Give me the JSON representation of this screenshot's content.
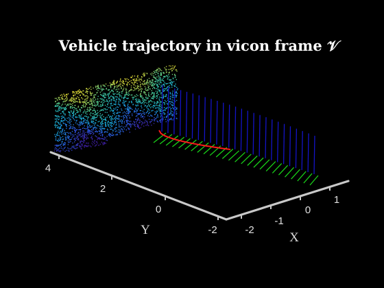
{
  "chart_data": {
    "type": "scatter",
    "title": "Vehicle trajectory in vicon frame 𝒱",
    "xlabel": "X",
    "ylabel": "Y",
    "zlabel": "",
    "x_ticks": [
      "-2",
      "-1",
      "0",
      "1"
    ],
    "y_ticks": [
      "-2",
      "0",
      "2",
      "4"
    ],
    "xlim": [
      -2.6,
      1.6
    ],
    "ylim": [
      -2.2,
      4.2
    ],
    "grid": false,
    "legend": "none",
    "colors": {
      "background": "#000000",
      "axes": "#c8c8c8",
      "trajectory": "#ff1a1a",
      "x_axis_markers": "#19d219",
      "z_axis_markers": "#1414c8",
      "pointcloud_colormap": [
        "#3b1d9a",
        "#2a58e0",
        "#17a8d8",
        "#3cc8a0",
        "#b8c840",
        "#f0e030"
      ]
    },
    "series": [
      {
        "kind": "point-cloud",
        "description_color": "parula colormap by height"
      },
      {
        "kind": "trajectory",
        "description_color": "red"
      }
    ]
  }
}
